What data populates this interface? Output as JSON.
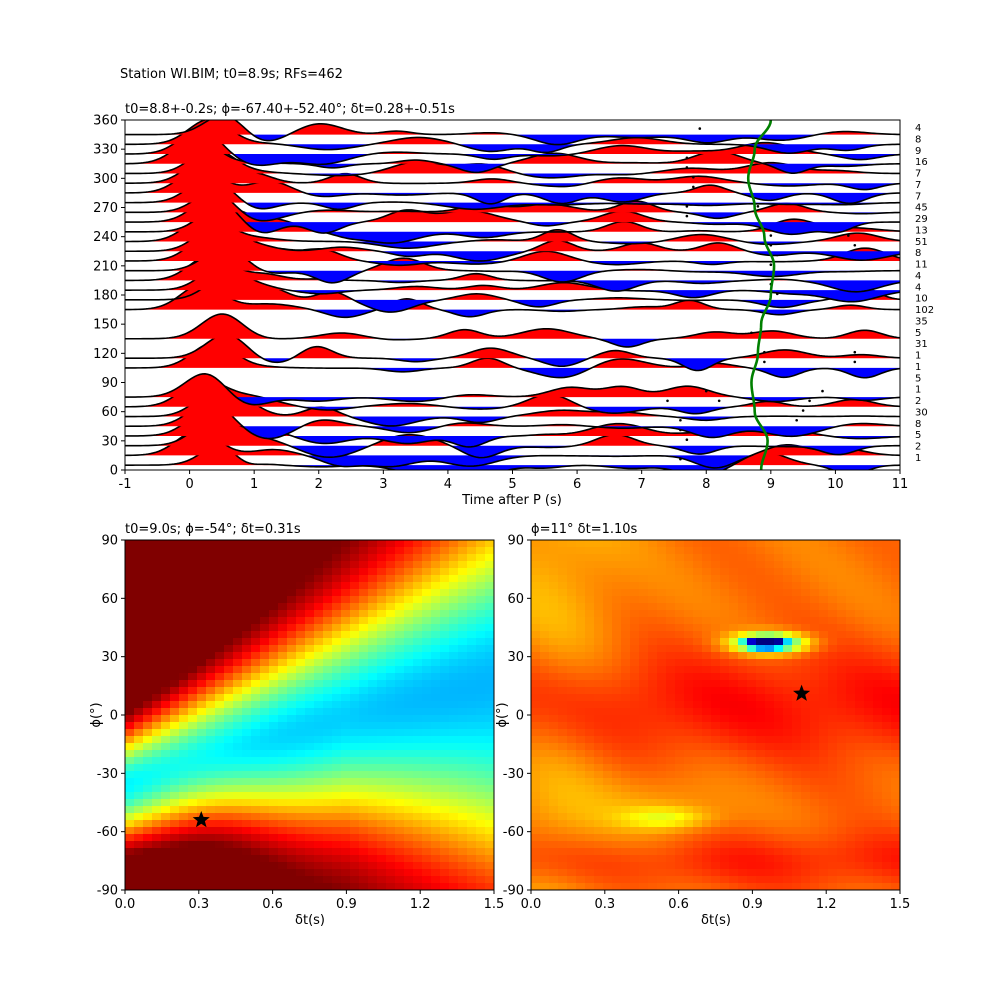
{
  "figure": {
    "suptitle": "Station WI.BIM; t0=8.9s; RFs=462"
  },
  "chart_data": [
    {
      "type": "line",
      "panel": "receiver-function-stack",
      "title": "t0=8.8+-0.2s; ϕ=-67.40+-52.40°; δt=0.28+-0.51s",
      "xlabel": "Time after P (s)",
      "ylabel": "",
      "xlim": [
        -1,
        11
      ],
      "ylim": [
        0,
        360
      ],
      "xticks": [
        "-1",
        "0",
        "1",
        "2",
        "3",
        "4",
        "5",
        "6",
        "7",
        "8",
        "9",
        "10",
        "11"
      ],
      "yticks": [
        "0",
        "30",
        "60",
        "90",
        "120",
        "150",
        "180",
        "210",
        "240",
        "270",
        "300",
        "330",
        "360"
      ],
      "positive_fill_color": "#ff0000",
      "negative_fill_color": "#0000ff",
      "trace_color": "#000000",
      "moveout_curve_color": "#008000",
      "count_labels": [
        "4",
        "8",
        "9",
        "16",
        "7",
        "7",
        "7",
        "45",
        "29",
        "13",
        "51",
        "8",
        "11",
        "4",
        "4",
        "10",
        "102",
        "35",
        "5",
        "31",
        "1",
        "1",
        "5",
        "1",
        "2",
        "30",
        "8",
        "5",
        "2",
        "1"
      ],
      "traces": [
        {
          "baz": 5,
          "arrivals": [
            7.6
          ]
        },
        {
          "baz": 15,
          "arrivals": [
            7.6
          ]
        },
        {
          "baz": 25,
          "arrivals": [
            7.7
          ]
        },
        {
          "baz": 35,
          "arrivals": [
            7.6,
            9.3
          ]
        },
        {
          "baz": 45,
          "arrivals": [
            7.6,
            9.4
          ]
        },
        {
          "baz": 55,
          "arrivals": [
            7.6,
            9.5
          ]
        },
        {
          "baz": 65,
          "arrivals": [
            7.4,
            8.2,
            9.6
          ]
        },
        {
          "baz": 75,
          "arrivals": [
            8.0,
            9.8
          ]
        },
        {
          "baz": 105,
          "arrivals": [
            8.9,
            10.3
          ]
        },
        {
          "baz": 115,
          "arrivals": [
            8.9,
            10.3
          ]
        },
        {
          "baz": 135,
          "arrivals": [
            8.7
          ]
        },
        {
          "baz": 165,
          "arrivals": [
            9.2
          ]
        },
        {
          "baz": 175,
          "arrivals": [
            9.1
          ]
        },
        {
          "baz": 185,
          "arrivals": [
            9.0
          ]
        },
        {
          "baz": 195,
          "arrivals": [
            9.0
          ]
        },
        {
          "baz": 205,
          "arrivals": [
            9.0
          ]
        },
        {
          "baz": 215,
          "arrivals": [
            9.1
          ]
        },
        {
          "baz": 225,
          "arrivals": [
            9.0,
            10.3
          ]
        },
        {
          "baz": 235,
          "arrivals": [
            9.0,
            10.2
          ]
        },
        {
          "baz": 245,
          "arrivals": [
            8.9
          ]
        },
        {
          "baz": 255,
          "arrivals": [
            7.7
          ]
        },
        {
          "baz": 265,
          "arrivals": [
            7.7,
            8.8
          ]
        },
        {
          "baz": 275,
          "arrivals": [
            9.0
          ]
        },
        {
          "baz": 285,
          "arrivals": [
            7.8
          ]
        },
        {
          "baz": 295,
          "arrivals": [
            7.8
          ]
        },
        {
          "baz": 305,
          "arrivals": [
            7.7
          ]
        },
        {
          "baz": 315,
          "arrivals": [
            7.7
          ]
        },
        {
          "baz": 325,
          "arrivals": [
            9.8
          ]
        },
        {
          "baz": 335,
          "arrivals": [
            7.9
          ]
        },
        {
          "baz": 345,
          "arrivals": [
            7.9
          ]
        }
      ],
      "moveout_curve": {
        "baz": [
          0,
          30,
          60,
          90,
          120,
          150,
          180,
          210,
          240,
          270,
          300,
          330,
          360
        ],
        "time": [
          8.85,
          8.95,
          8.75,
          8.7,
          8.8,
          8.85,
          9.0,
          9.05,
          8.9,
          8.75,
          8.65,
          8.75,
          9.0
        ]
      }
    },
    {
      "type": "heatmap",
      "panel": "energy-grid",
      "title": "t0=9.0s; ϕ=-54°; δt=0.31s",
      "xlabel": "δt(s)",
      "ylabel": "ϕ(°)",
      "xlim": [
        0,
        1.5
      ],
      "ylim": [
        -90,
        90
      ],
      "xticks": [
        "0.0",
        "0.3",
        "0.6",
        "0.9",
        "1.2",
        "1.5"
      ],
      "yticks": [
        "-90",
        "-60",
        "-30",
        "0",
        "30",
        "60",
        "90"
      ],
      "colormap": "jet",
      "best_fit": {
        "dt": 0.31,
        "phi": -54
      },
      "marker": "star"
    },
    {
      "type": "heatmap",
      "panel": "misfit-grid",
      "title": "ϕ=11° δt=1.10s",
      "xlabel": "δt(s)",
      "ylabel": "ϕ(°)",
      "xlim": [
        0,
        1.5
      ],
      "ylim": [
        -90,
        90
      ],
      "xticks": [
        "0.0",
        "0.3",
        "0.6",
        "0.9",
        "1.2",
        "1.5"
      ],
      "yticks": [
        "-90",
        "-60",
        "-30",
        "0",
        "30",
        "60",
        "90"
      ],
      "colormap": "jet",
      "best_fit": {
        "dt": 1.1,
        "phi": 11
      },
      "marker": "star"
    }
  ]
}
